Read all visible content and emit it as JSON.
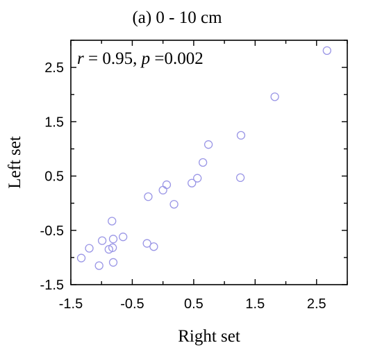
{
  "chart_data": {
    "type": "scatter",
    "title": "(a) 0 - 10 cm",
    "xlabel": "Right set",
    "ylabel": "Left set",
    "annotation": {
      "r_symbol": "r",
      "r_value": " = 0.95, ",
      "p_symbol": "p",
      "p_value": " =0.002"
    },
    "xlim": [
      -1.5,
      3.0
    ],
    "ylim": [
      -1.5,
      3.0
    ],
    "xticks": [
      -1.5,
      -0.5,
      0.5,
      1.5,
      2.5
    ],
    "xtick_labels": [
      "-1.5",
      "-0.5",
      "0.5",
      "1.5",
      "2.5"
    ],
    "yticks": [
      -1.5,
      -0.5,
      0.5,
      1.5,
      2.5
    ],
    "ytick_labels": [
      "-1.5",
      "-0.5",
      "0.5",
      "1.5",
      "2.5"
    ],
    "minor_step": 0.5,
    "grid": false,
    "marker_color": "#9a96e6",
    "points": [
      {
        "x": -1.33,
        "y": -1.01
      },
      {
        "x": -1.2,
        "y": -0.83
      },
      {
        "x": -1.04,
        "y": -1.15
      },
      {
        "x": -0.99,
        "y": -0.69
      },
      {
        "x": -0.88,
        "y": -0.85
      },
      {
        "x": -0.82,
        "y": -0.82
      },
      {
        "x": -0.81,
        "y": -0.66
      },
      {
        "x": -0.81,
        "y": -1.09
      },
      {
        "x": -0.83,
        "y": -0.33
      },
      {
        "x": -0.65,
        "y": -0.62
      },
      {
        "x": -0.26,
        "y": -0.74
      },
      {
        "x": -0.24,
        "y": 0.12
      },
      {
        "x": -0.15,
        "y": -0.8
      },
      {
        "x": 0.0,
        "y": 0.24
      },
      {
        "x": 0.06,
        "y": 0.34
      },
      {
        "x": 0.18,
        "y": -0.02
      },
      {
        "x": 0.47,
        "y": 0.37
      },
      {
        "x": 0.56,
        "y": 0.46
      },
      {
        "x": 0.65,
        "y": 0.75
      },
      {
        "x": 0.74,
        "y": 1.08
      },
      {
        "x": 1.26,
        "y": 0.47
      },
      {
        "x": 1.27,
        "y": 1.25
      },
      {
        "x": 1.82,
        "y": 1.96
      },
      {
        "x": 2.67,
        "y": 2.81
      }
    ]
  }
}
